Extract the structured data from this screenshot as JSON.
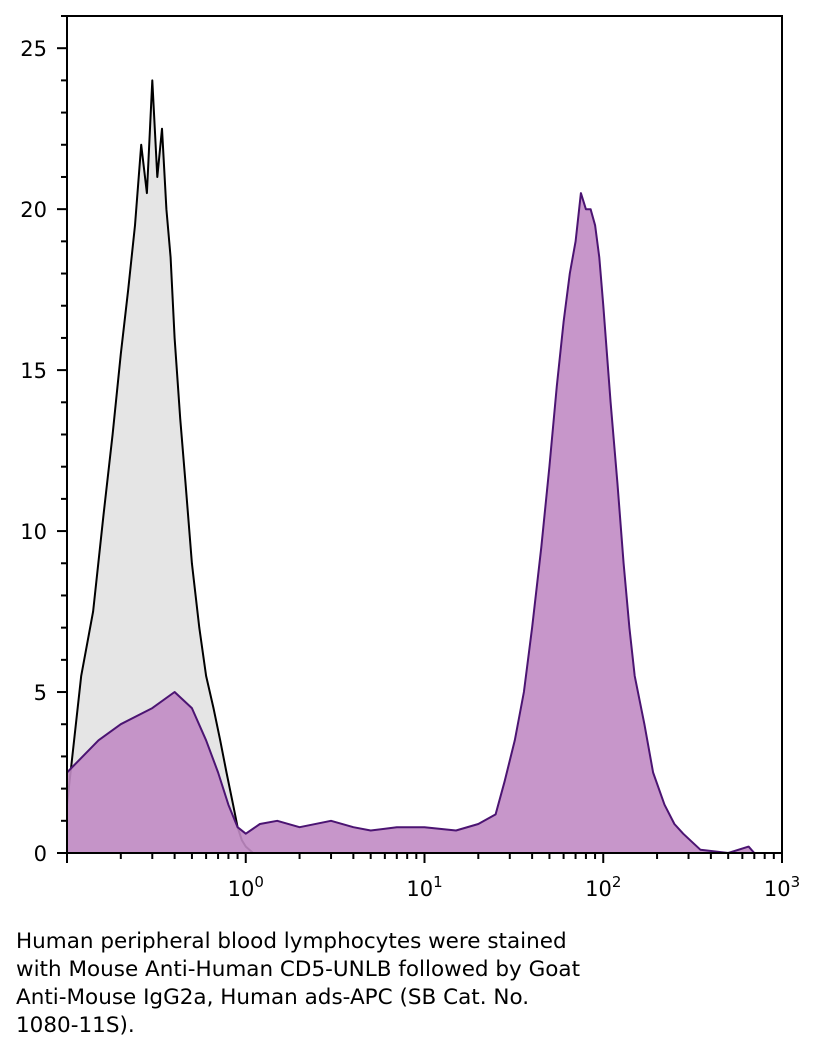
{
  "chart_data": {
    "type": "area",
    "x_scale": "log",
    "xlim": [
      0.1,
      1000
    ],
    "ylim": [
      0,
      26
    ],
    "y_ticks": [
      0,
      5,
      10,
      15,
      20,
      25
    ],
    "x_ticks": [
      {
        "value": 1,
        "base": "10",
        "exp": "0"
      },
      {
        "value": 10,
        "base": "10",
        "exp": "1"
      },
      {
        "value": 100,
        "base": "10",
        "exp": "2"
      },
      {
        "value": 1000,
        "base": "10",
        "exp": "3"
      }
    ],
    "series": [
      {
        "key": "control",
        "fill": "#e2e2e2",
        "stroke": "#000000",
        "x": [
          0.1,
          0.12,
          0.14,
          0.16,
          0.18,
          0.2,
          0.22,
          0.24,
          0.26,
          0.28,
          0.3,
          0.32,
          0.34,
          0.36,
          0.38,
          0.4,
          0.43,
          0.46,
          0.5,
          0.55,
          0.6,
          0.66,
          0.72,
          0.78,
          0.85,
          0.9,
          0.95,
          1.0,
          1.1
        ],
        "y": [
          1.5,
          5.5,
          7.5,
          10.5,
          13,
          15.5,
          17.5,
          19.5,
          22,
          20.5,
          24,
          21,
          22.5,
          20,
          18.5,
          16,
          13.5,
          11.5,
          9,
          7,
          5.5,
          4.5,
          3.5,
          2.5,
          1.5,
          0.8,
          0.4,
          0.2,
          0
        ]
      },
      {
        "key": "stained",
        "fill": "#c18bc4",
        "stroke": "#4b1472",
        "x": [
          0.1,
          0.15,
          0.2,
          0.3,
          0.4,
          0.5,
          0.6,
          0.7,
          0.8,
          0.9,
          1.0,
          1.2,
          1.5,
          2,
          3,
          4,
          5,
          7,
          10,
          15,
          20,
          25,
          28,
          32,
          36,
          40,
          45,
          50,
          55,
          60,
          65,
          70,
          75,
          80,
          85,
          90,
          95,
          100,
          110,
          120,
          130,
          140,
          150,
          170,
          190,
          220,
          250,
          280,
          320,
          350,
          500,
          650,
          700
        ],
        "y": [
          2.5,
          3.5,
          4,
          4.5,
          5,
          4.5,
          3.5,
          2.5,
          1.5,
          0.8,
          0.6,
          0.9,
          1,
          0.8,
          1,
          0.8,
          0.7,
          0.8,
          0.8,
          0.7,
          0.9,
          1.2,
          2.2,
          3.5,
          5,
          7,
          9.5,
          12,
          14.5,
          16.5,
          18,
          19,
          20.5,
          20,
          20,
          19.5,
          18.5,
          17,
          14,
          11.5,
          9,
          7,
          5.5,
          4,
          2.5,
          1.5,
          0.9,
          0.6,
          0.3,
          0.1,
          0,
          0.2,
          0
        ]
      }
    ]
  },
  "caption_lines": [
    "Human peripheral blood lymphocytes were stained",
    "with Mouse Anti-Human CD5-UNLB followed by Goat",
    "Anti-Mouse IgG2a, Human ads-APC (SB Cat. No.",
    "1080-11S)."
  ]
}
